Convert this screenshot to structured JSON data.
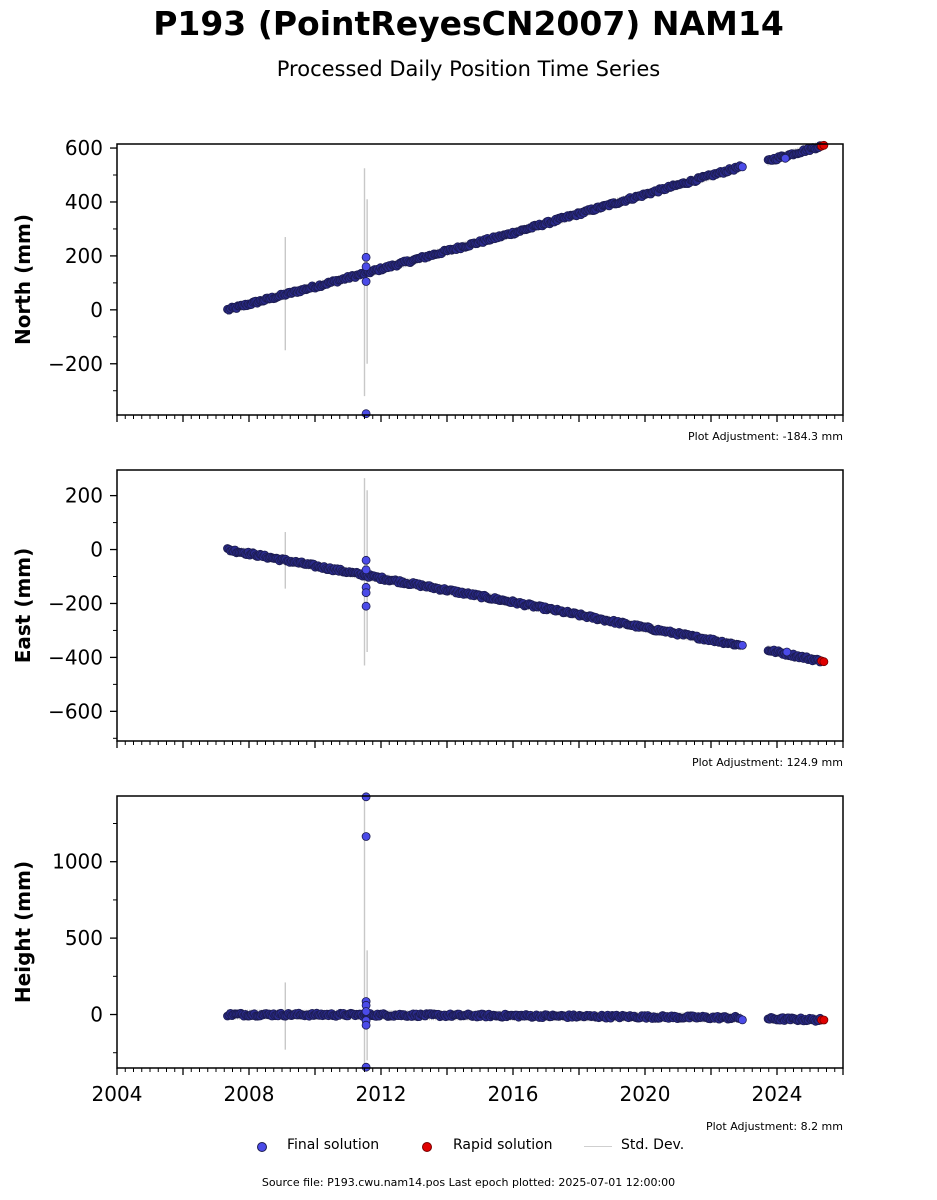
{
  "header": {
    "title": "P193 (PointReyesCN2007) NAM14",
    "subtitle": "Processed Daily Position Time Series"
  },
  "legend": {
    "final": "Final solution",
    "rapid": "Rapid solution",
    "stddev": "Std. Dev."
  },
  "footer": {
    "source": "Source file: P193.cwu.nam14.pos  Last epoch plotted: 2025-07-01 12:00:00"
  },
  "colors": {
    "final_fill": "#4b4be8",
    "final_edge": "#1c1c50",
    "rapid_fill": "#e00000",
    "stddev": "#c8c8c8",
    "axis": "#000000"
  },
  "chart_data": [
    {
      "type": "scatter",
      "ylabel": "North (mm)",
      "adjustment": "Plot Adjustment: -184.3 mm",
      "xlim": [
        2004,
        2026
      ],
      "ylim": [
        -390,
        615
      ],
      "yticks": [
        -200,
        0,
        200,
        400,
        600
      ],
      "ytick_labels": [
        "−200",
        "0",
        "200",
        "400",
        "600"
      ],
      "trend": [
        [
          2007.35,
          0
        ],
        [
          2011.5,
          135
        ],
        [
          2016,
          285
        ],
        [
          2020,
          428
        ],
        [
          2022.9,
          530
        ]
      ],
      "trend2": [
        [
          2023.7,
          552
        ],
        [
          2025.4,
          610
        ]
      ],
      "gap": [
        2022.95,
        2023.7
      ],
      "outliers": [
        [
          2011.55,
          195
        ],
        [
          2011.55,
          160
        ],
        [
          2011.55,
          105
        ],
        [
          2011.55,
          -385
        ],
        [
          2024.25,
          562
        ],
        [
          2022.95,
          530
        ]
      ],
      "rapid": [
        [
          2025.35,
          607
        ],
        [
          2025.42,
          610
        ]
      ],
      "stddev": [
        [
          2009.1,
          -150,
          270
        ],
        [
          2011.5,
          -320,
          525
        ],
        [
          2011.58,
          -200,
          410
        ]
      ]
    },
    {
      "type": "scatter",
      "ylabel": "East (mm)",
      "adjustment": "Plot Adjustment: 124.9 mm",
      "xlim": [
        2004,
        2026
      ],
      "ylim": [
        -710,
        295
      ],
      "yticks": [
        -600,
        -400,
        -200,
        0,
        200
      ],
      "ytick_labels": [
        "−600",
        "−400",
        "−200",
        "0",
        "200"
      ],
      "trend": [
        [
          2007.35,
          0
        ],
        [
          2011.5,
          -95
        ],
        [
          2016,
          -195
        ],
        [
          2020,
          -290
        ],
        [
          2022.9,
          -355
        ]
      ],
      "trend2": [
        [
          2023.7,
          -372
        ],
        [
          2025.4,
          -415
        ]
      ],
      "gap": [
        2022.95,
        2023.7
      ],
      "outliers": [
        [
          2011.55,
          -40
        ],
        [
          2011.55,
          -75
        ],
        [
          2011.55,
          -140
        ],
        [
          2011.55,
          -160
        ],
        [
          2011.55,
          -210
        ],
        [
          2024.3,
          -380
        ],
        [
          2022.95,
          -355
        ]
      ],
      "rapid": [
        [
          2025.35,
          -413
        ],
        [
          2025.42,
          -416
        ]
      ],
      "stddev": [
        [
          2009.1,
          -145,
          65
        ],
        [
          2011.5,
          -430,
          265
        ],
        [
          2011.58,
          -380,
          220
        ]
      ]
    },
    {
      "type": "scatter",
      "ylabel": "Height (mm)",
      "adjustment": "Plot Adjustment: 8.2 mm",
      "xlim": [
        2004,
        2026
      ],
      "ylim": [
        -350,
        1430
      ],
      "yticks": [
        0,
        500,
        1000
      ],
      "ytick_labels": [
        "0",
        "500",
        "1000"
      ],
      "xticks": [
        2004,
        2008,
        2012,
        2016,
        2020,
        2024
      ],
      "xtick_labels": [
        "2004",
        "2008",
        "2012",
        "2016",
        "2020",
        "2024"
      ],
      "trend": [
        [
          2007.35,
          0
        ],
        [
          2011.5,
          -2
        ],
        [
          2016,
          -8
        ],
        [
          2020,
          -15
        ],
        [
          2022.9,
          -22
        ]
      ],
      "trend2": [
        [
          2023.7,
          -28
        ],
        [
          2025.4,
          -35
        ]
      ],
      "gap": [
        2022.95,
        2023.7
      ],
      "outliers": [
        [
          2011.55,
          1425
        ],
        [
          2011.55,
          1165
        ],
        [
          2011.55,
          85
        ],
        [
          2011.55,
          60
        ],
        [
          2011.55,
          20
        ],
        [
          2011.55,
          -40
        ],
        [
          2011.55,
          -70
        ],
        [
          2011.55,
          -345
        ],
        [
          2022.95,
          -35
        ]
      ],
      "rapid": [
        [
          2025.35,
          -35
        ],
        [
          2025.42,
          -36
        ]
      ],
      "stddev": [
        [
          2009.1,
          -230,
          210
        ],
        [
          2011.5,
          -350,
          1430
        ],
        [
          2011.58,
          -300,
          420
        ]
      ]
    }
  ]
}
